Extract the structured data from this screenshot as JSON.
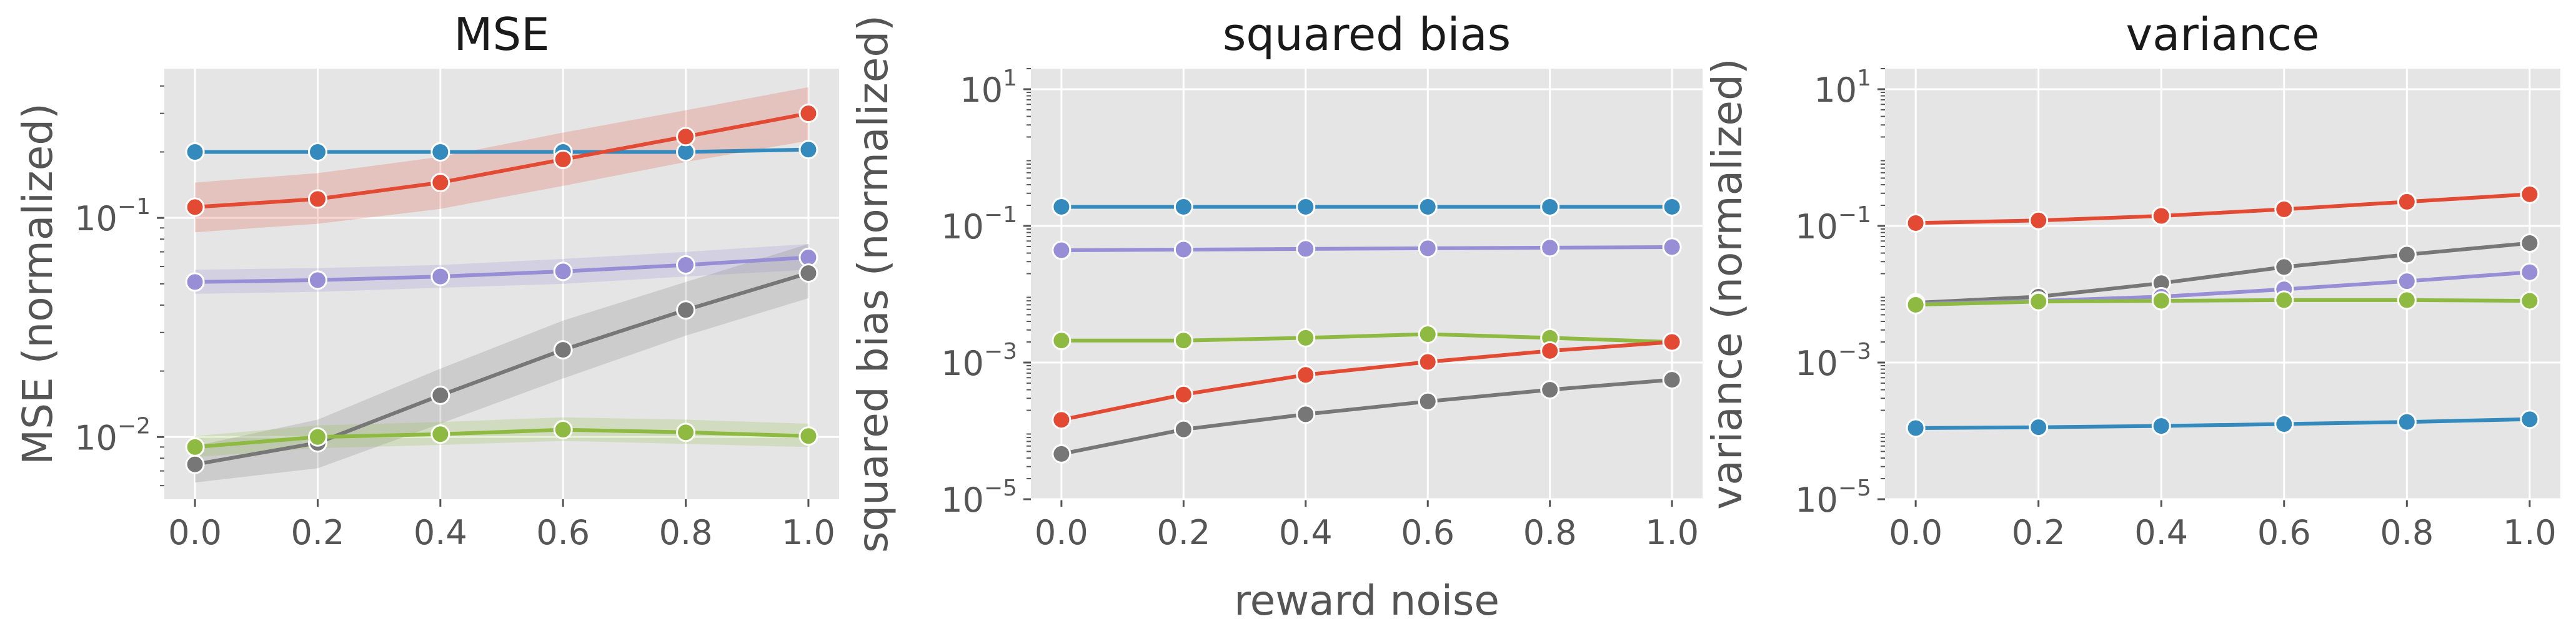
{
  "chart_data": [
    {
      "type": "line",
      "title": "MSE",
      "ylabel": "MSE (normalized)",
      "xlabel": "",
      "yscale": "log",
      "grid": true,
      "xlim": [
        -0.05,
        1.05
      ],
      "ylim": [
        0.0052,
        0.48
      ],
      "x": [
        0.0,
        0.2,
        0.4,
        0.6,
        0.8,
        1.0
      ],
      "x_tick_labels": [
        "0.0",
        "0.2",
        "0.4",
        "0.6",
        "0.8",
        "1.0"
      ],
      "y_ticks": [
        {
          "base": "10",
          "exp": "−1",
          "value": 0.1
        },
        {
          "base": "10",
          "exp": "−2",
          "value": 0.01
        }
      ],
      "series": [
        {
          "color": "#348abd",
          "values": [
            0.2,
            0.2,
            0.2,
            0.2,
            0.2,
            0.205
          ],
          "band": null
        },
        {
          "color": "#e24a33",
          "values": [
            0.112,
            0.122,
            0.145,
            0.185,
            0.235,
            0.3
          ],
          "band": {
            "lower": [
              0.086,
              0.094,
              0.11,
              0.14,
              0.18,
              0.225
            ],
            "upper": [
              0.145,
              0.16,
              0.19,
              0.245,
              0.31,
              0.395
            ]
          }
        },
        {
          "color": "#988ed5",
          "values": [
            0.051,
            0.052,
            0.054,
            0.057,
            0.061,
            0.066
          ],
          "band": {
            "lower": [
              0.045,
              0.046,
              0.048,
              0.05,
              0.054,
              0.058
            ],
            "upper": [
              0.058,
              0.059,
              0.061,
              0.065,
              0.07,
              0.076
            ]
          }
        },
        {
          "color": "#777777",
          "values": [
            0.0075,
            0.0094,
            0.0155,
            0.025,
            0.038,
            0.056
          ],
          "band": {
            "lower": [
              0.0062,
              0.0072,
              0.0115,
              0.0185,
              0.029,
              0.043
            ],
            "upper": [
              0.0091,
              0.012,
              0.0205,
              0.034,
              0.051,
              0.076
            ]
          }
        },
        {
          "color": "#8eba42",
          "values": [
            0.009,
            0.01,
            0.0103,
            0.0108,
            0.0105,
            0.0101
          ],
          "band": {
            "lower": [
              0.0081,
              0.0089,
              0.0092,
              0.0096,
              0.0093,
              0.009
            ],
            "upper": [
              0.0101,
              0.0113,
              0.0117,
              0.0123,
              0.012,
              0.0115
            ]
          }
        }
      ]
    },
    {
      "type": "line",
      "title": "squared bias",
      "ylabel": "squared bias (normalized)",
      "xlabel": "reward noise",
      "yscale": "log",
      "grid": true,
      "xlim": [
        -0.05,
        1.05
      ],
      "ylim": [
        1e-05,
        20
      ],
      "x": [
        0.0,
        0.2,
        0.4,
        0.6,
        0.8,
        1.0
      ],
      "x_tick_labels": [
        "0.0",
        "0.2",
        "0.4",
        "0.6",
        "0.8",
        "1.0"
      ],
      "y_ticks": [
        {
          "base": "10",
          "exp": "1",
          "value": 10
        },
        {
          "base": "10",
          "exp": "−1",
          "value": 0.1
        },
        {
          "base": "10",
          "exp": "−3",
          "value": 0.001
        },
        {
          "base": "10",
          "exp": "−5",
          "value": 1e-05
        }
      ],
      "series": [
        {
          "color": "#348abd",
          "values": [
            0.19,
            0.19,
            0.19,
            0.19,
            0.19,
            0.19
          ],
          "band": null
        },
        {
          "color": "#988ed5",
          "values": [
            0.044,
            0.045,
            0.046,
            0.047,
            0.048,
            0.049
          ],
          "band": null
        },
        {
          "color": "#8eba42",
          "values": [
            0.0021,
            0.0021,
            0.0023,
            0.0026,
            0.0023,
            0.002
          ],
          "band": null
        },
        {
          "color": "#e24a33",
          "values": [
            0.000145,
            0.00034,
            0.00066,
            0.00102,
            0.00148,
            0.002
          ],
          "band": null
        },
        {
          "color": "#777777",
          "values": [
            4.6e-05,
            0.000105,
            0.000175,
            0.00027,
            0.0004,
            0.00056
          ],
          "band": null
        }
      ]
    },
    {
      "type": "line",
      "title": "variance",
      "ylabel": "variance (normalized)",
      "xlabel": "",
      "yscale": "log",
      "grid": true,
      "xlim": [
        -0.05,
        1.05
      ],
      "ylim": [
        1e-05,
        20
      ],
      "x": [
        0.0,
        0.2,
        0.4,
        0.6,
        0.8,
        1.0
      ],
      "x_tick_labels": [
        "0.0",
        "0.2",
        "0.4",
        "0.6",
        "0.8",
        "1.0"
      ],
      "y_ticks": [
        {
          "base": "10",
          "exp": "1",
          "value": 10
        },
        {
          "base": "10",
          "exp": "−1",
          "value": 0.1
        },
        {
          "base": "10",
          "exp": "−3",
          "value": 0.001
        },
        {
          "base": "10",
          "exp": "−5",
          "value": 1e-05
        }
      ],
      "series": [
        {
          "color": "#e24a33",
          "values": [
            0.11,
            0.12,
            0.14,
            0.175,
            0.225,
            0.29
          ],
          "band": null
        },
        {
          "color": "#777777",
          "values": [
            0.0075,
            0.0092,
            0.0145,
            0.025,
            0.038,
            0.056
          ],
          "band": null
        },
        {
          "color": "#988ed5",
          "values": [
            0.0072,
            0.008,
            0.0092,
            0.0118,
            0.0155,
            0.021
          ],
          "band": null
        },
        {
          "color": "#8eba42",
          "values": [
            0.007,
            0.0078,
            0.008,
            0.0082,
            0.0082,
            0.008
          ],
          "band": null
        },
        {
          "color": "#348abd",
          "values": [
            0.00011,
            0.000113,
            0.000118,
            0.000126,
            0.000135,
            0.000148
          ],
          "band": null
        }
      ]
    }
  ]
}
